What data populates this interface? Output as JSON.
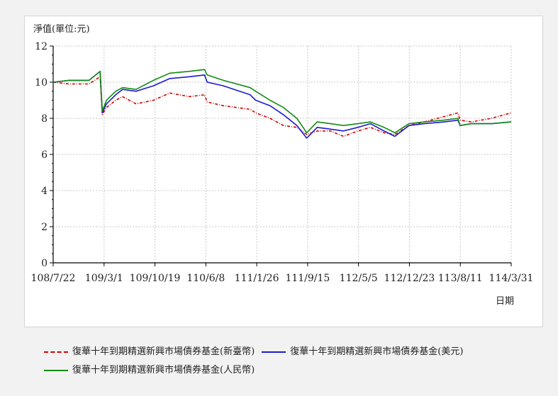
{
  "chart_data": {
    "type": "line",
    "ylabel": "淨值(單位:元)",
    "xlabel": "日期",
    "ylim": [
      0,
      12
    ],
    "y_ticks": [
      "0",
      "2",
      "4",
      "6",
      "8",
      "10",
      "12"
    ],
    "x_ticks": [
      "108/7/22",
      "109/3/1",
      "109/10/19",
      "110/6/8",
      "111/1/26",
      "111/9/15",
      "112/5/5",
      "112/12/23",
      "113/8/11",
      "114/3/31"
    ],
    "grid": true,
    "legend_position": "bottom",
    "x_points": [
      "108/7/22",
      "108/10/1",
      "109/1/1",
      "109/2/20",
      "109/3/1",
      "109/3/20",
      "109/5/1",
      "109/6/1",
      "109/8/1",
      "109/10/19",
      "110/1/1",
      "110/4/1",
      "110/6/8",
      "110/6/20",
      "110/9/1",
      "111/1/1",
      "111/1/26",
      "111/4/1",
      "111/6/1",
      "111/8/1",
      "111/9/15",
      "111/11/1",
      "112/1/1",
      "112/3/1",
      "112/5/5",
      "112/7/1",
      "112/9/1",
      "112/10/20",
      "112/12/23",
      "113/3/1",
      "113/6/1",
      "113/8/1",
      "113/8/11",
      "113/10/1",
      "114/1/1",
      "114/3/31"
    ],
    "series": [
      {
        "name": "復華十年到期精選新興市場債券基金(新臺幣)",
        "color": "#d00000",
        "style": "dashed",
        "values": [
          10.0,
          9.9,
          9.9,
          10.3,
          8.2,
          8.6,
          9.0,
          9.2,
          8.8,
          9.0,
          9.4,
          9.2,
          9.3,
          8.9,
          8.7,
          8.5,
          8.3,
          8.0,
          7.6,
          7.5,
          7.1,
          7.3,
          7.3,
          7.0,
          7.3,
          7.5,
          7.2,
          7.1,
          7.6,
          7.8,
          8.1,
          8.3,
          7.9,
          7.8,
          8.0,
          8.3
        ]
      },
      {
        "name": "復華十年到期精選新興市場債券基金(美元)",
        "color": "#1a1ad0",
        "style": "solid",
        "values": [
          10.0,
          10.1,
          10.1,
          10.6,
          8.3,
          8.8,
          9.3,
          9.6,
          9.5,
          9.8,
          10.2,
          10.3,
          10.4,
          10.0,
          9.8,
          9.3,
          9.0,
          8.7,
          8.2,
          7.6,
          6.9,
          7.5,
          7.4,
          7.3,
          7.5,
          7.7,
          7.3,
          7.0,
          7.6,
          7.7,
          7.8,
          7.9,
          7.6,
          7.7,
          7.7,
          7.8
        ]
      },
      {
        "name": "復華十年到期精選新興市場債券基金(人民幣)",
        "color": "#138a13",
        "style": "solid",
        "values": [
          10.0,
          10.1,
          10.1,
          10.6,
          8.4,
          9.0,
          9.5,
          9.7,
          9.6,
          10.1,
          10.5,
          10.6,
          10.7,
          10.4,
          10.1,
          9.7,
          9.5,
          9.0,
          8.6,
          8.0,
          7.2,
          7.8,
          7.7,
          7.6,
          7.7,
          7.8,
          7.5,
          7.2,
          7.7,
          7.8,
          7.9,
          8.0,
          7.6,
          7.7,
          7.7,
          7.8
        ]
      }
    ]
  }
}
